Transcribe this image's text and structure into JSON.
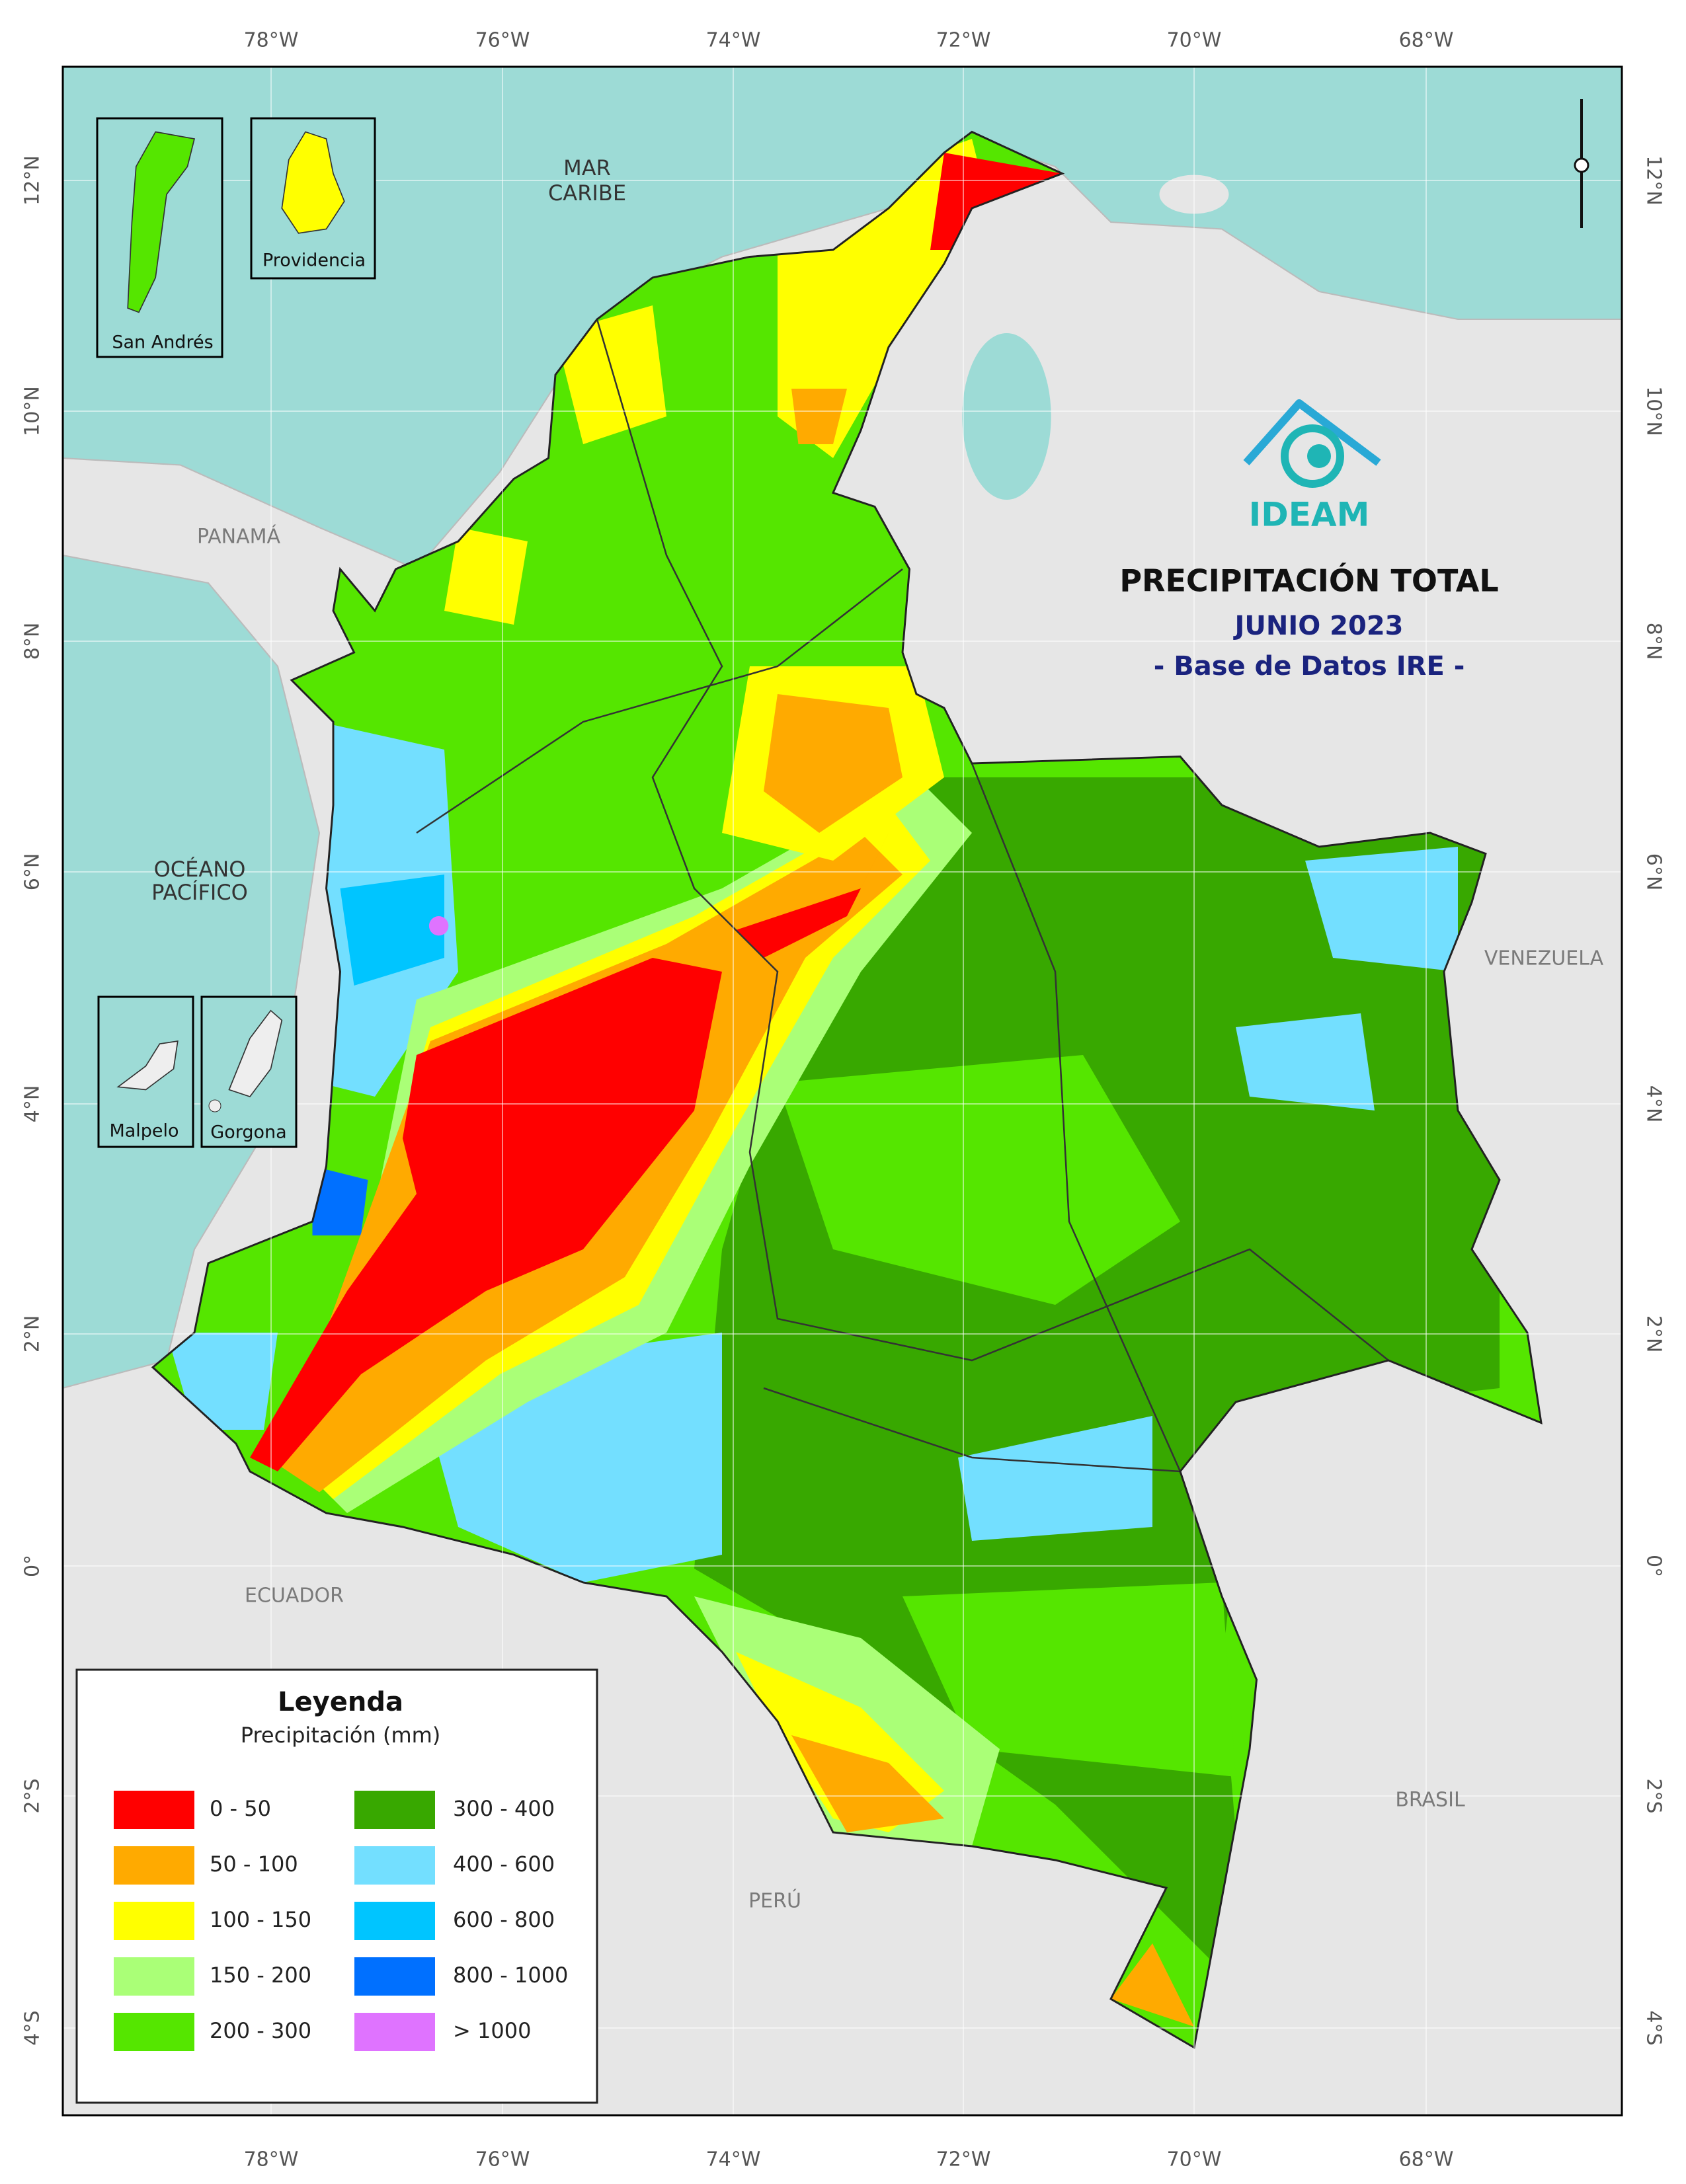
{
  "map": {
    "title": "PRECIPITACIÓN TOTAL",
    "subtitle": "JUNIO 2023",
    "source": "- Base de Datos IRE -",
    "logo": "IDEAM",
    "longitudes": [
      "78°W",
      "76°W",
      "74°W",
      "72°W",
      "70°W",
      "68°W"
    ],
    "latitudes": [
      "12°N",
      "10°N",
      "8°N",
      "6°N",
      "4°N",
      "2°N",
      "0°",
      "2°S",
      "4°S"
    ],
    "places": {
      "caribbean": [
        "MAR",
        "CARIBE"
      ],
      "pacific": [
        "OCÉANO",
        "PACÍFICO"
      ],
      "panama": "PANAMÁ",
      "venezuela": "VENEZUELA",
      "ecuador": "ECUADOR",
      "peru": "PERÚ",
      "brazil": "BRASIL"
    },
    "insets": [
      "San Andrés",
      "Providencia",
      "Malpelo",
      "Gorgona"
    ],
    "legend": {
      "title": "Leyenda",
      "subtitle": "Precipitación (mm)",
      "items": [
        {
          "label": "0 - 50",
          "color": "#ff0000"
        },
        {
          "label": "50 - 100",
          "color": "#ffaa00"
        },
        {
          "label": "100 - 150",
          "color": "#ffff00"
        },
        {
          "label": "150 - 200",
          "color": "#aaff77"
        },
        {
          "label": "200 - 300",
          "color": "#55e600"
        },
        {
          "label": "300 - 400",
          "color": "#38a800"
        },
        {
          "label": "400 - 600",
          "color": "#73dfff"
        },
        {
          "label": "600 - 800",
          "color": "#00c5ff"
        },
        {
          "label": "800 - 1000",
          "color": "#0070ff"
        },
        {
          "label": "> 1000",
          "color": "#df73ff"
        }
      ]
    }
  }
}
